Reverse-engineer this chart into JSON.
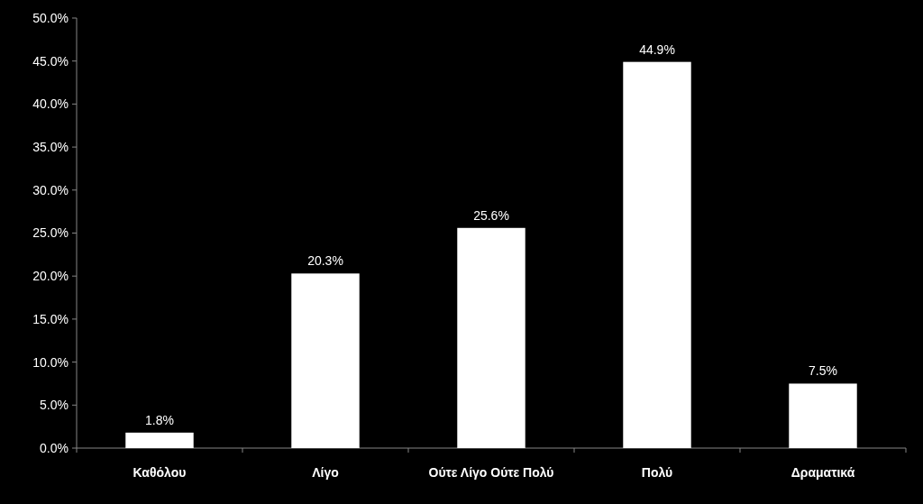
{
  "chart_data": {
    "type": "bar",
    "categories": [
      "Καθόλου",
      "Λίγο",
      "Ούτε Λίγο Ούτε Πολύ",
      "Πολύ",
      "Δραματικά"
    ],
    "values": [
      1.8,
      20.3,
      25.6,
      44.9,
      7.5
    ],
    "color": "#ffffff",
    "value_labels": [
      "1.8%",
      "20.3%",
      "25.6%",
      "44.9%",
      "7.5%"
    ],
    "ylim": [
      0,
      50
    ],
    "yticks": [
      {
        "value": 0,
        "label": "0.0%"
      },
      {
        "value": 5,
        "label": "5.0%"
      },
      {
        "value": 10,
        "label": "10.0%"
      },
      {
        "value": 15,
        "label": "15.0%"
      },
      {
        "value": 20,
        "label": "20.0%"
      },
      {
        "value": 25,
        "label": "25.0%"
      },
      {
        "value": 30,
        "label": "30.0%"
      },
      {
        "value": 35,
        "label": "35.0%"
      },
      {
        "value": 40,
        "label": "40.0%"
      },
      {
        "value": 45,
        "label": "45.0%"
      },
      {
        "value": 50,
        "label": "50.0%"
      }
    ],
    "grid": false
  }
}
